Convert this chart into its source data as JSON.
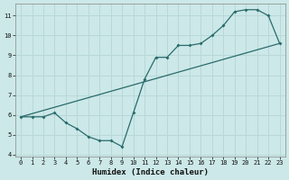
{
  "xlabel": "Humidex (Indice chaleur)",
  "bg_color": "#cce8e8",
  "grid_color": "#b8d8d8",
  "line_color": "#2a6b6b",
  "line1_x": [
    0,
    1,
    2,
    3,
    4,
    5,
    6,
    7,
    8,
    9,
    10,
    11,
    12,
    13,
    14,
    15,
    16,
    17,
    18,
    19,
    20,
    21,
    22,
    23
  ],
  "line1_y": [
    5.9,
    5.9,
    5.9,
    6.1,
    5.6,
    5.3,
    4.9,
    4.7,
    4.7,
    4.4,
    6.1,
    7.8,
    8.9,
    8.9,
    9.5,
    9.5,
    9.6,
    10.0,
    10.5,
    11.2,
    11.3,
    11.3,
    11.0,
    9.6
  ],
  "line2_x": [
    0,
    23
  ],
  "line2_y": [
    5.9,
    9.6
  ],
  "xlim": [
    -0.5,
    23.5
  ],
  "ylim": [
    3.9,
    11.6
  ],
  "yticks": [
    4,
    5,
    6,
    7,
    8,
    9,
    10,
    11
  ],
  "xticks": [
    0,
    1,
    2,
    3,
    4,
    5,
    6,
    7,
    8,
    9,
    10,
    11,
    12,
    13,
    14,
    15,
    16,
    17,
    18,
    19,
    20,
    21,
    22,
    23
  ],
  "xlabel_fontsize": 6.5,
  "tick_fontsize": 5.0
}
